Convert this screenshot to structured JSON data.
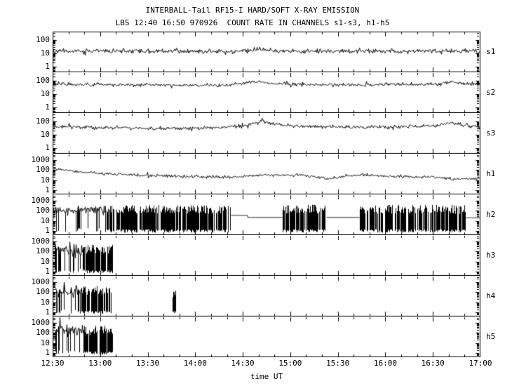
{
  "title": {
    "line1": "INTERBALL-Tail RF15-I HARD/SOFT X-RAY EMISSION",
    "line2": "LBS 12:40 16:50 970926  COUNT RATE IN CHANNELS s1-s3, h1-h5"
  },
  "xaxis": {
    "label": "time UT",
    "t_start": 12.5,
    "t_end": 17.0,
    "tick_hours": [
      12.5,
      13.0,
      13.5,
      14.0,
      14.5,
      15.0,
      15.5,
      16.0,
      16.5,
      17.0
    ],
    "tick_labels": [
      "12:30",
      "13:00",
      "13:30",
      "14:00",
      "14:30",
      "15:00",
      "15:30",
      "16:00",
      "16:30",
      "17:00"
    ],
    "minor_divisions": 3
  },
  "colors": {
    "fg": "#000000",
    "bg": "#ffffff"
  },
  "chart_data": {
    "type": "line",
    "title": "INTERBALL-Tail RF15-I HARD/SOFT X-RAY EMISSION",
    "subtitle": "LBS 12:40 16:50 970926  COUNT RATE IN CHANNELS s1-s3, h1-h5",
    "xlabel": "time UT",
    "x_range_hours": [
      12.5,
      17.0
    ],
    "y_scale": "log",
    "panels": [
      {
        "name": "s1",
        "yticks": [
          100,
          10,
          1
        ],
        "ylim": [
          0.4,
          400
        ],
        "seed": 11,
        "sigma": 0.08,
        "points": [
          [
            12.5,
            15
          ],
          [
            13.0,
            14.5
          ],
          [
            13.5,
            14
          ],
          [
            14.0,
            14
          ],
          [
            14.45,
            14
          ],
          [
            14.7,
            19
          ],
          [
            14.95,
            15
          ],
          [
            15.5,
            14
          ],
          [
            16.0,
            14.5
          ],
          [
            16.6,
            14
          ],
          [
            16.75,
            16
          ],
          [
            17.0,
            14
          ]
        ]
      },
      {
        "name": "s2",
        "yticks": [
          100,
          10,
          1
        ],
        "ylim": [
          0.4,
          400
        ],
        "seed": 22,
        "sigma": 0.06,
        "points": [
          [
            12.5,
            55
          ],
          [
            13.0,
            50
          ],
          [
            13.5,
            46
          ],
          [
            14.0,
            44
          ],
          [
            14.35,
            44
          ],
          [
            14.62,
            85
          ],
          [
            14.8,
            60
          ],
          [
            15.1,
            50
          ],
          [
            15.5,
            47
          ],
          [
            16.0,
            50
          ],
          [
            16.55,
            52
          ],
          [
            16.7,
            80
          ],
          [
            16.85,
            58
          ],
          [
            17.0,
            52
          ]
        ]
      },
      {
        "name": "s3",
        "yticks": [
          100,
          10,
          1
        ],
        "ylim": [
          0.4,
          400
        ],
        "seed": 33,
        "sigma": 0.07,
        "points": [
          [
            12.5,
            40
          ],
          [
            13.0,
            34
          ],
          [
            13.6,
            30
          ],
          [
            14.1,
            30
          ],
          [
            14.5,
            45
          ],
          [
            14.7,
            95
          ],
          [
            14.9,
            52
          ],
          [
            15.2,
            40
          ],
          [
            15.6,
            36
          ],
          [
            16.1,
            36
          ],
          [
            16.55,
            45
          ],
          [
            16.68,
            78
          ],
          [
            16.85,
            45
          ],
          [
            17.0,
            42
          ]
        ]
      },
      {
        "name": "h1",
        "yticks": [
          1000,
          100,
          10,
          1
        ],
        "ylim": [
          0.4,
          4000
        ],
        "seed": 44,
        "sigma": 0.07,
        "points": [
          [
            12.5,
            140
          ],
          [
            12.7,
            80
          ],
          [
            13.0,
            45
          ],
          [
            13.4,
            30
          ],
          [
            13.8,
            24
          ],
          [
            14.2,
            20
          ],
          [
            14.5,
            24
          ],
          [
            14.7,
            32
          ],
          [
            15.0,
            33
          ],
          [
            15.2,
            26
          ],
          [
            15.42,
            13
          ],
          [
            15.55,
            22
          ],
          [
            15.75,
            34
          ],
          [
            15.95,
            25
          ],
          [
            16.3,
            24
          ],
          [
            16.55,
            20
          ],
          [
            16.7,
            12
          ],
          [
            16.85,
            14
          ],
          [
            17.0,
            13
          ]
        ]
      },
      {
        "name": "h2",
        "yticks": [
          1000,
          100,
          10,
          1
        ],
        "ylim": [
          0.4,
          4000
        ],
        "seed": 55,
        "segments": [
          {
            "type": "band",
            "t0": 12.5,
            "t1": 13.05,
            "hi": 110,
            "sigma": 0.22,
            "dropP": 0.18,
            "lo": 1
          },
          {
            "type": "comb",
            "t0": 13.05,
            "t1": 14.37,
            "hi": 100,
            "lo": 1,
            "density": 0.82
          },
          {
            "type": "flat",
            "t0": 14.37,
            "t1": 14.55,
            "level": 35
          },
          {
            "type": "flat",
            "t0": 14.55,
            "t1": 14.92,
            "level": 22
          },
          {
            "type": "comb",
            "t0": 14.92,
            "t1": 15.38,
            "hi": 110,
            "lo": 1,
            "density": 0.85
          },
          {
            "type": "flat",
            "t0": 15.38,
            "t1": 15.73,
            "level": 22
          },
          {
            "type": "comb",
            "t0": 15.73,
            "t1": 16.85,
            "hi": 100,
            "lo": 1,
            "density": 0.8
          },
          {
            "type": "flat",
            "t0": 16.85,
            "t1": 17.0,
            "level": 20
          }
        ]
      },
      {
        "name": "h3",
        "yticks": [
          1000,
          100,
          10,
          1
        ],
        "ylim": [
          0.4,
          4000
        ],
        "seed": 66,
        "segments": [
          {
            "type": "band",
            "t0": 12.52,
            "t1": 12.83,
            "hi": 160,
            "sigma": 0.3,
            "dropP": 0.3,
            "lo": 1
          },
          {
            "type": "comb",
            "t0": 12.83,
            "t1": 13.13,
            "hi": 120,
            "lo": 1,
            "density": 0.85
          }
        ]
      },
      {
        "name": "h4",
        "yticks": [
          1000,
          100,
          10,
          1
        ],
        "ylim": [
          0.4,
          4000
        ],
        "seed": 77,
        "segments": [
          {
            "type": "band",
            "t0": 12.52,
            "t1": 12.8,
            "hi": 130,
            "sigma": 0.3,
            "dropP": 0.3,
            "lo": 1
          },
          {
            "type": "comb",
            "t0": 12.8,
            "t1": 13.12,
            "hi": 110,
            "lo": 1,
            "density": 0.85
          },
          {
            "type": "comb",
            "t0": 13.76,
            "t1": 13.8,
            "hi": 60,
            "lo": 1,
            "density": 1.0
          }
        ]
      },
      {
        "name": "h5",
        "yticks": [
          1000,
          100,
          10,
          1
        ],
        "ylim": [
          0.4,
          4000
        ],
        "seed": 88,
        "segments": [
          {
            "type": "band",
            "t0": 12.52,
            "t1": 12.82,
            "hi": 180,
            "sigma": 0.32,
            "dropP": 0.3,
            "lo": 1
          },
          {
            "type": "comb",
            "t0": 12.82,
            "t1": 13.13,
            "hi": 130,
            "lo": 1,
            "density": 0.85
          }
        ]
      }
    ]
  }
}
